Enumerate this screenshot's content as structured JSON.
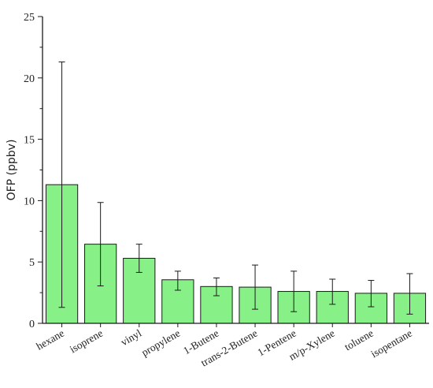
{
  "chart_data": {
    "type": "bar",
    "categories": [
      "hexane",
      "isoprene",
      "vinyl",
      "propylene",
      "1-Butene",
      "trans-2-Butene",
      "1-Pentene",
      "m/p-Xylene",
      "toluene",
      "isopentane"
    ],
    "values": [
      11.3,
      6.45,
      5.3,
      3.55,
      3.0,
      2.95,
      2.6,
      2.6,
      2.45,
      2.45
    ],
    "error_upper": [
      21.3,
      9.85,
      6.45,
      4.25,
      3.7,
      4.75,
      4.25,
      3.6,
      3.5,
      4.05
    ],
    "error_lower": [
      1.3,
      3.05,
      4.15,
      2.7,
      2.25,
      1.15,
      0.95,
      1.55,
      1.35,
      0.75
    ],
    "ylabel": "OFP (ppbv)",
    "xlabel": "",
    "ylim": [
      0,
      25
    ],
    "yticks": [
      "0",
      "5",
      "10",
      "15",
      "20",
      "25"
    ],
    "grid": false,
    "bar_color": "#87f087",
    "edge_color": "#1a1a1a"
  }
}
